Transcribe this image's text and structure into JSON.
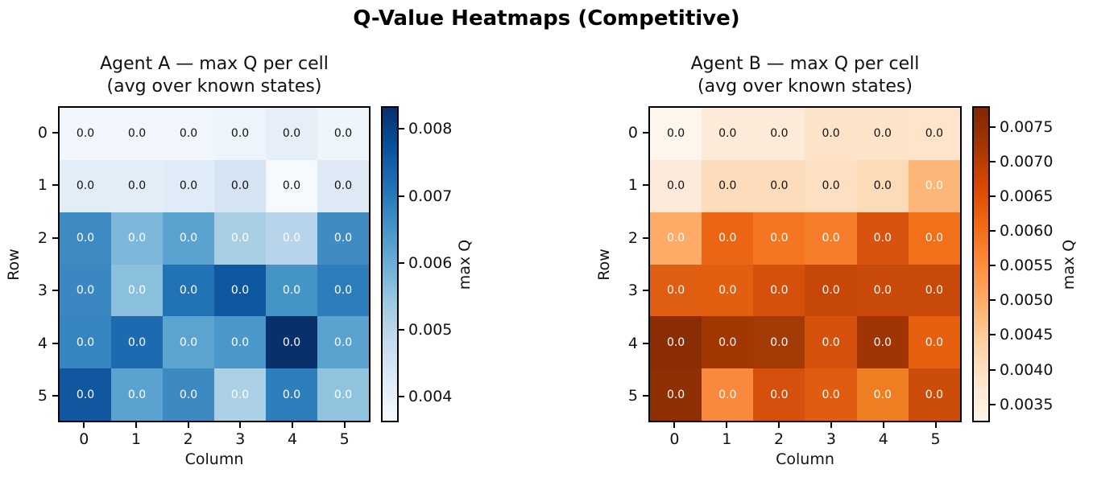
{
  "figure": {
    "title": "Q-Value Heatmaps (Competitive)"
  },
  "chart_data": [
    {
      "type": "heatmap",
      "title": "Agent A — max Q per cell",
      "subtitle": "(avg over known states)",
      "xlabel": "Column",
      "ylabel": "Row",
      "x_ticks": [
        "0",
        "1",
        "2",
        "3",
        "4",
        "5"
      ],
      "y_ticks": [
        "0",
        "1",
        "2",
        "3",
        "4",
        "5"
      ],
      "cell_label": "0.0",
      "colormap": "Blues",
      "colorbar": {
        "label": "max Q",
        "ticks": [
          "0.008",
          "0.007",
          "0.006",
          "0.005",
          "0.004"
        ],
        "value_at_top": 0.00834,
        "value_at_bottom": 0.00362,
        "gradient_stops_top_to_bottom": [
          "#08306b",
          "#08519c",
          "#2171b5",
          "#4292c6",
          "#6baed6",
          "#9ecae1",
          "#c6dbef",
          "#deebf7",
          "#f7fbff"
        ]
      },
      "cell_colors": [
        [
          "#f1f7fc",
          "#f0f6fc",
          "#f0f6fc",
          "#edf4fb",
          "#e6eff8",
          "#eef5fb"
        ],
        [
          "#e2edf8",
          "#e4eef8",
          "#dfebf7",
          "#d4e4f3",
          "#f6fafe",
          "#dfeaf6"
        ],
        [
          "#3e8ac2",
          "#7db8da",
          "#5aa2d0",
          "#a7cee3",
          "#b7d4ea",
          "#3f8bc2"
        ],
        [
          "#3a87c1",
          "#8abfdd",
          "#2272b6",
          "#0e58a2",
          "#4594c8",
          "#2d7dbb"
        ],
        [
          "#3685c0",
          "#1e6ab0",
          "#5ca4d0",
          "#4a97c9",
          "#08306b",
          "#5aa2d0"
        ],
        [
          "#1057a0",
          "#5aa3d0",
          "#3d89c2",
          "#abd0e6",
          "#2e7ebc",
          "#8fc3de"
        ]
      ],
      "cell_text_white": [
        [
          false,
          false,
          false,
          false,
          false,
          false
        ],
        [
          false,
          false,
          false,
          false,
          false,
          false
        ],
        [
          true,
          true,
          true,
          true,
          true,
          true
        ],
        [
          true,
          true,
          true,
          true,
          true,
          true
        ],
        [
          true,
          true,
          true,
          true,
          true,
          true
        ],
        [
          true,
          true,
          true,
          true,
          true,
          true
        ]
      ],
      "estimated_values_from_color": [
        [
          0.0038,
          0.0038,
          0.0038,
          0.0039,
          0.0041,
          0.0039
        ],
        [
          0.0042,
          0.0042,
          0.0043,
          0.0045,
          0.0036,
          0.0043
        ],
        [
          0.0064,
          0.0056,
          0.006,
          0.0051,
          0.005,
          0.0064
        ],
        [
          0.0065,
          0.0054,
          0.007,
          0.0076,
          0.0062,
          0.0068
        ],
        [
          0.0065,
          0.0072,
          0.006,
          0.0062,
          0.0083,
          0.006
        ],
        [
          0.0076,
          0.006,
          0.0064,
          0.0051,
          0.0067,
          0.0054
        ]
      ]
    },
    {
      "type": "heatmap",
      "title": "Agent B — max Q per cell",
      "subtitle": "(avg over known states)",
      "xlabel": "Column",
      "ylabel": "Row",
      "x_ticks": [
        "0",
        "1",
        "2",
        "3",
        "4",
        "5"
      ],
      "y_ticks": [
        "0",
        "1",
        "2",
        "3",
        "4",
        "5"
      ],
      "cell_label": "0.0",
      "colormap": "Oranges",
      "colorbar": {
        "label": "max Q",
        "ticks": [
          "0.0075",
          "0.0070",
          "0.0065",
          "0.0060",
          "0.0055",
          "0.0050",
          "0.0045",
          "0.0040",
          "0.0035"
        ],
        "value_at_top": 0.0078,
        "value_at_bottom": 0.00324,
        "gradient_stops_top_to_bottom": [
          "#7f2704",
          "#a63603",
          "#d94801",
          "#f16913",
          "#fd8d3c",
          "#fdae6b",
          "#fdd0a2",
          "#fee6ce",
          "#fff5eb"
        ]
      },
      "cell_colors": [
        [
          "#fef6ec",
          "#fdead9",
          "#fdead9",
          "#fde3c8",
          "#fde3c8",
          "#fde4ca"
        ],
        [
          "#fdeada",
          "#fcdcbb",
          "#fcdcbb",
          "#fddfc1",
          "#fcdbb9",
          "#fbb678"
        ],
        [
          "#fdab67",
          "#ec6514",
          "#f57621",
          "#f67d29",
          "#d8530e",
          "#f17019"
        ],
        [
          "#e05e12",
          "#e25f10",
          "#d4500b",
          "#c74708",
          "#ca4a09",
          "#c94909"
        ],
        [
          "#8b2d04",
          "#a33703",
          "#a43a05",
          "#d5510c",
          "#a03404",
          "#e95f10"
        ],
        [
          "#8f2f04",
          "#f8883c",
          "#d4500c",
          "#e05c10",
          "#ef7d22",
          "#cc4c09"
        ]
      ],
      "cell_text_white": [
        [
          false,
          false,
          false,
          false,
          false,
          false
        ],
        [
          false,
          false,
          false,
          false,
          false,
          true
        ],
        [
          true,
          true,
          true,
          true,
          true,
          true
        ],
        [
          true,
          true,
          true,
          true,
          true,
          true
        ],
        [
          true,
          true,
          true,
          true,
          true,
          true
        ],
        [
          true,
          true,
          true,
          true,
          true,
          true
        ]
      ],
      "estimated_values_from_color": [
        [
          0.0034,
          0.0036,
          0.0036,
          0.0038,
          0.0038,
          0.0038
        ],
        [
          0.0036,
          0.004,
          0.004,
          0.0039,
          0.004,
          0.0047
        ],
        [
          0.005,
          0.0061,
          0.0058,
          0.0057,
          0.0064,
          0.0059
        ],
        [
          0.0062,
          0.0062,
          0.0065,
          0.0067,
          0.0066,
          0.0066
        ],
        [
          0.0076,
          0.0072,
          0.0072,
          0.0065,
          0.0073,
          0.0061
        ],
        [
          0.0075,
          0.0056,
          0.0065,
          0.0063,
          0.0057,
          0.0066
        ]
      ]
    }
  ]
}
